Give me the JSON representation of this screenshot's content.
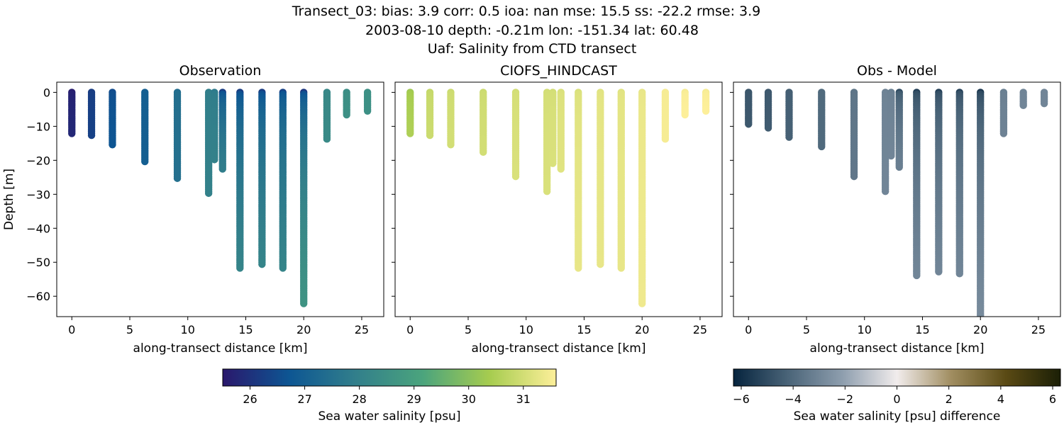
{
  "figure": {
    "title_lines": [
      "Transect_03: bias: 3.9  corr: 0.5  ioa: nan  mse: 15.5  ss: -22.2  rmse: 3.9",
      "2003-08-10 depth: -0.21m lon: -151.34 lat: 60.48",
      "Uaf: Salinity from CTD transect"
    ]
  },
  "chart_data": [
    {
      "type": "scatter",
      "title": "Observation",
      "xlabel": "along-transect distance [km]",
      "ylabel": "Depth [m]",
      "xlim": [
        -1.3,
        26.9
      ],
      "ylim": [
        -66,
        3
      ],
      "xticks": [
        0,
        5,
        10,
        15,
        20,
        25
      ],
      "yticks": [
        0,
        -10,
        -20,
        -30,
        -40,
        -50,
        -60
      ],
      "colormap": "haline",
      "grid": false,
      "profiles": [
        {
          "x": 0.0,
          "max_depth": -12.3,
          "surface_value": 25.6,
          "bottom_value": 25.8
        },
        {
          "x": 1.7,
          "max_depth": -12.8,
          "surface_value": 26.2,
          "bottom_value": 26.3
        },
        {
          "x": 3.5,
          "max_depth": -15.6,
          "surface_value": 26.5,
          "bottom_value": 26.7
        },
        {
          "x": 6.3,
          "max_depth": -20.8,
          "surface_value": 27.0,
          "bottom_value": 27.0
        },
        {
          "x": 9.1,
          "max_depth": -25.8,
          "surface_value": 27.4,
          "bottom_value": 27.5
        },
        {
          "x": 11.8,
          "max_depth": -30.0,
          "surface_value": 27.9,
          "bottom_value": 28.0
        },
        {
          "x": 12.3,
          "max_depth": -20.0,
          "surface_value": 27.8,
          "bottom_value": 28.0
        },
        {
          "x": 13.0,
          "max_depth": -23.0,
          "surface_value": 26.2,
          "bottom_value": 27.9
        },
        {
          "x": 14.5,
          "max_depth": -52.2,
          "surface_value": 26.2,
          "bottom_value": 28.1
        },
        {
          "x": 16.4,
          "max_depth": -50.8,
          "surface_value": 26.2,
          "bottom_value": 28.1
        },
        {
          "x": 18.2,
          "max_depth": -51.8,
          "surface_value": 26.3,
          "bottom_value": 28.1
        },
        {
          "x": 20.0,
          "max_depth": -62.5,
          "surface_value": 26.1,
          "bottom_value": 28.6
        },
        {
          "x": 22.0,
          "max_depth": -14.0,
          "surface_value": 28.2,
          "bottom_value": 28.3
        },
        {
          "x": 23.7,
          "max_depth": -7.0,
          "surface_value": 28.4,
          "bottom_value": 28.5
        },
        {
          "x": 25.5,
          "max_depth": -6.0,
          "surface_value": 28.5,
          "bottom_value": 28.5
        }
      ]
    },
    {
      "type": "scatter",
      "title": "CIOFS_HINDCAST",
      "xlabel": "along-transect distance [km]",
      "ylabel": "",
      "xlim": [
        -1.3,
        26.9
      ],
      "ylim": [
        -66,
        3
      ],
      "xticks": [
        0,
        5,
        10,
        15,
        20,
        25
      ],
      "yticks": [
        0,
        -10,
        -20,
        -30,
        -40,
        -50,
        -60
      ],
      "colormap": "haline",
      "grid": false,
      "profiles": [
        {
          "x": 0.0,
          "max_depth": -12.3,
          "surface_value": 30.3,
          "bottom_value": 30.5
        },
        {
          "x": 1.7,
          "max_depth": -12.8,
          "surface_value": 30.8,
          "bottom_value": 30.9
        },
        {
          "x": 3.5,
          "max_depth": -15.6,
          "surface_value": 30.9,
          "bottom_value": 31.0
        },
        {
          "x": 6.3,
          "max_depth": -18.0,
          "surface_value": 30.9,
          "bottom_value": 31.0
        },
        {
          "x": 9.1,
          "max_depth": -25.3,
          "surface_value": 31.0,
          "bottom_value": 31.1
        },
        {
          "x": 11.8,
          "max_depth": -29.6,
          "surface_value": 31.0,
          "bottom_value": 31.1
        },
        {
          "x": 12.3,
          "max_depth": -21.0,
          "surface_value": 31.0,
          "bottom_value": 31.1
        },
        {
          "x": 13.0,
          "max_depth": -23.0,
          "surface_value": 31.1,
          "bottom_value": 31.2
        },
        {
          "x": 14.5,
          "max_depth": -52.2,
          "surface_value": 31.1,
          "bottom_value": 31.3
        },
        {
          "x": 16.4,
          "max_depth": -50.8,
          "surface_value": 31.2,
          "bottom_value": 31.3
        },
        {
          "x": 18.2,
          "max_depth": -51.8,
          "surface_value": 31.2,
          "bottom_value": 31.3
        },
        {
          "x": 20.0,
          "max_depth": -62.5,
          "surface_value": 31.3,
          "bottom_value": 31.4
        },
        {
          "x": 22.0,
          "max_depth": -14.0,
          "surface_value": 31.5,
          "bottom_value": 31.5
        },
        {
          "x": 23.7,
          "max_depth": -7.0,
          "surface_value": 31.5,
          "bottom_value": 31.6
        },
        {
          "x": 25.5,
          "max_depth": -6.0,
          "surface_value": 31.5,
          "bottom_value": 31.6
        }
      ]
    },
    {
      "type": "scatter",
      "title": "Obs - Model",
      "xlabel": "along-transect distance [km]",
      "ylabel": "",
      "xlim": [
        -1.3,
        26.9
      ],
      "ylim": [
        -66,
        3
      ],
      "xticks": [
        0,
        5,
        10,
        15,
        20,
        25
      ],
      "yticks": [
        0,
        -10,
        -20,
        -30,
        -40,
        -50,
        -60
      ],
      "colormap": "diff",
      "grid": false,
      "profiles": [
        {
          "x": 0.0,
          "max_depth": -9.5,
          "surface_value": -4.7,
          "bottom_value": -4.6
        },
        {
          "x": 1.7,
          "max_depth": -10.8,
          "surface_value": -4.6,
          "bottom_value": -4.5
        },
        {
          "x": 3.5,
          "max_depth": -13.6,
          "surface_value": -4.4,
          "bottom_value": -4.3
        },
        {
          "x": 6.3,
          "max_depth": -16.5,
          "surface_value": -4.0,
          "bottom_value": -4.0
        },
        {
          "x": 9.1,
          "max_depth": -25.0,
          "surface_value": -3.6,
          "bottom_value": -3.5
        },
        {
          "x": 11.8,
          "max_depth": -29.6,
          "surface_value": -3.1,
          "bottom_value": -3.0
        },
        {
          "x": 12.3,
          "max_depth": -19.0,
          "surface_value": -3.2,
          "bottom_value": -3.0
        },
        {
          "x": 13.0,
          "max_depth": -22.5,
          "surface_value": -5.0,
          "bottom_value": -3.2
        },
        {
          "x": 14.5,
          "max_depth": -54.0,
          "surface_value": -5.4,
          "bottom_value": -3.0
        },
        {
          "x": 16.4,
          "max_depth": -53.0,
          "surface_value": -5.4,
          "bottom_value": -3.0
        },
        {
          "x": 18.2,
          "max_depth": -53.5,
          "surface_value": -5.3,
          "bottom_value": -3.0
        },
        {
          "x": 20.0,
          "max_depth": -66.0,
          "surface_value": -5.6,
          "bottom_value": -2.8
        },
        {
          "x": 22.0,
          "max_depth": -12.3,
          "surface_value": -3.2,
          "bottom_value": -3.1
        },
        {
          "x": 23.7,
          "max_depth": -4.3,
          "surface_value": -3.0,
          "bottom_value": -3.0
        },
        {
          "x": 25.5,
          "max_depth": -3.6,
          "surface_value": -3.0,
          "bottom_value": -3.0
        }
      ]
    }
  ],
  "colorbars": [
    {
      "label": "Sea water salinity [psu]",
      "colormap": "haline",
      "range": [
        25.5,
        31.6
      ],
      "ticks": [
        26,
        27,
        28,
        29,
        30,
        31
      ]
    },
    {
      "label": "Sea water salinity [psu] difference",
      "colormap": "diff",
      "range": [
        -6.3,
        6.3
      ],
      "ticks": [
        -6,
        -4,
        -2,
        0,
        2,
        4,
        6
      ],
      "tick_labels": [
        "−6",
        "−4",
        "−2",
        "0",
        "2",
        "4",
        "6"
      ]
    }
  ],
  "colormaps": {
    "haline": [
      "#2a186c",
      "#0d5693",
      "#327f8b",
      "#4ba47d",
      "#a6cc4f",
      "#fdef9a"
    ],
    "diff": [
      "#06243e",
      "#4a6478",
      "#8e9eae",
      "#f1ecec",
      "#a08d60",
      "#5a4a14",
      "#1b1f06"
    ]
  }
}
